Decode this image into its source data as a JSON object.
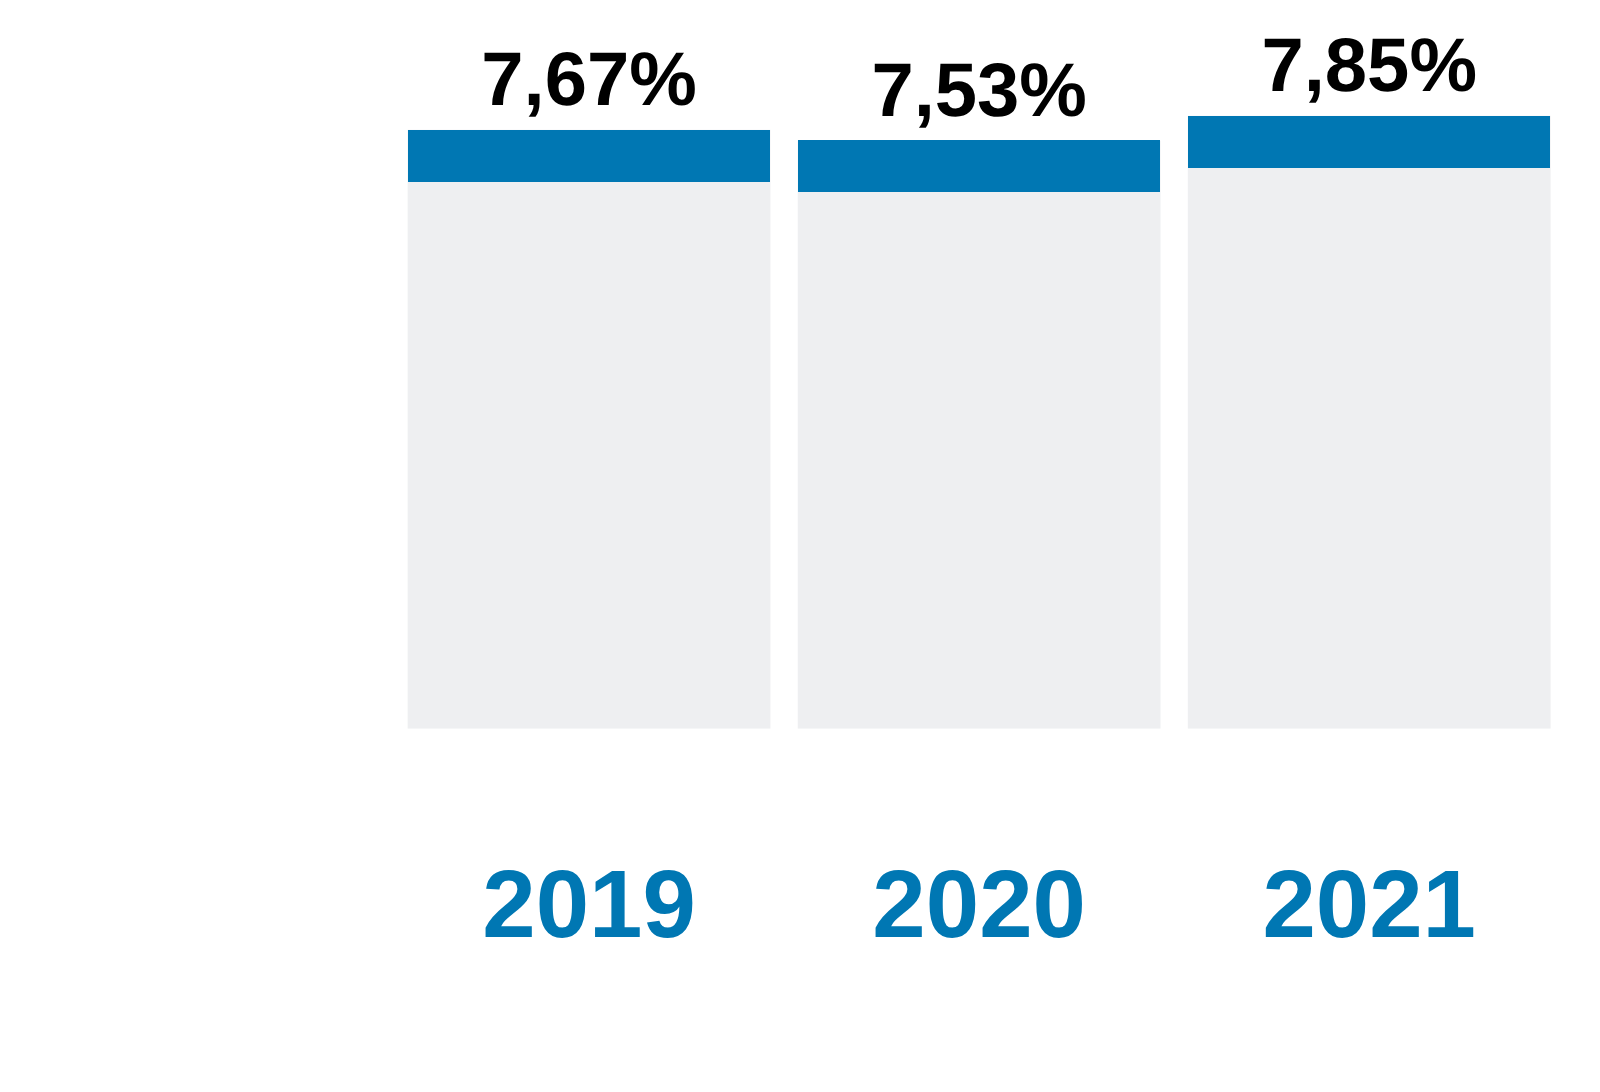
{
  "chart_data": {
    "type": "bar",
    "categories": [
      "2019",
      "2020",
      "2021"
    ],
    "values": [
      7.67,
      7.53,
      7.85
    ],
    "value_labels": [
      "7,67%",
      "7,53%",
      "7,85%"
    ],
    "color": "#eeeff1",
    "grid": false,
    "tick_labels": "x"
  }
}
